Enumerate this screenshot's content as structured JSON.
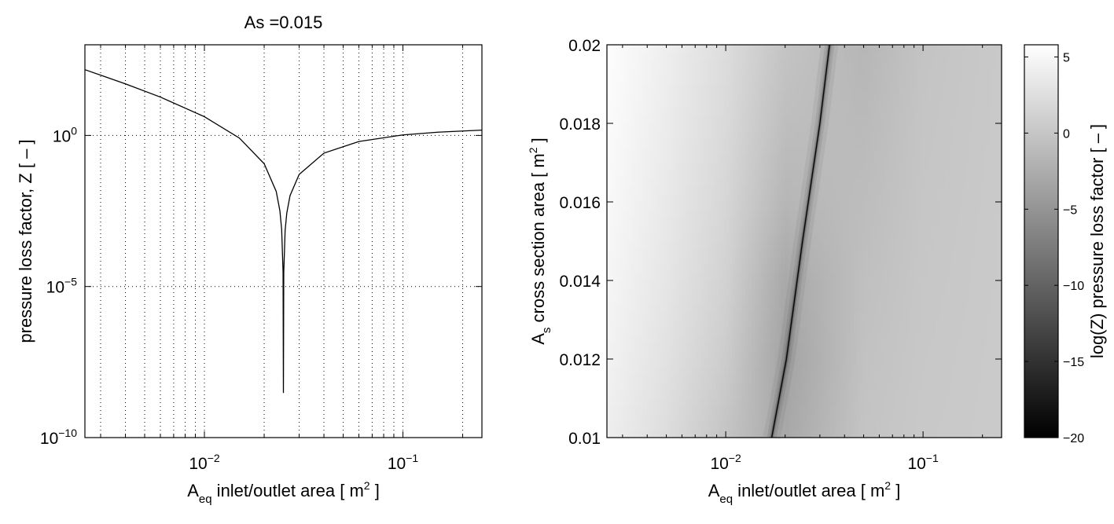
{
  "chart_data": [
    {
      "type": "line",
      "title": "As =0.015",
      "xlabel": {
        "main": "A",
        "sub": "eq",
        "rest": " inlet/outlet area [ m",
        "sup": "2",
        "end": " ]"
      },
      "ylabel": "pressure loss factor, Z [ – ]",
      "xscale": "log",
      "yscale": "log",
      "xlim": [
        0.0025,
        0.25
      ],
      "ylim": [
        1e-10,
        1000
      ],
      "grid": true,
      "xticks": [
        {
          "value": 0.01,
          "base": "10",
          "exp": "−2"
        },
        {
          "value": 0.1,
          "base": "10",
          "exp": "−1"
        }
      ],
      "yticks": [
        {
          "value": 1e-10,
          "base": "10",
          "exp": "−10"
        },
        {
          "value": 1e-05,
          "base": "10",
          "exp": "−5"
        },
        {
          "value": 1,
          "base": "10",
          "exp": "0"
        }
      ],
      "line_color": "#000000",
      "series": [
        {
          "x": [
            0.0025,
            0.004,
            0.006,
            0.01,
            0.015,
            0.02,
            0.023,
            0.024,
            0.0245,
            0.0249,
            0.025,
            0.0251,
            0.0255,
            0.026,
            0.027,
            0.03,
            0.04,
            0.06,
            0.1,
            0.15,
            0.25
          ],
          "y": [
            150,
            51,
            18.6,
            4.16,
            0.82,
            0.116,
            0.014,
            0.0032,
            0.00077,
            3e-05,
            3e-09,
            2.9e-05,
            0.00071,
            0.0027,
            0.0102,
            0.051,
            0.26,
            0.63,
            1.04,
            1.28,
            1.5
          ]
        }
      ]
    },
    {
      "type": "heatmap",
      "xlabel": {
        "main": "A",
        "sub": "eq",
        "rest": " inlet/outlet area [ m",
        "sup": "2",
        "end": " ]"
      },
      "ylabel": {
        "main": "A",
        "sub": "s",
        "rest": " cross section area [ m",
        "sup": "2",
        "end": " ]"
      },
      "xscale": "log",
      "xlim": [
        0.0025,
        0.25
      ],
      "ylim": [
        0.01,
        0.02
      ],
      "xticks": [
        {
          "value": 0.01,
          "base": "10",
          "exp": "−2"
        },
        {
          "value": 0.1,
          "base": "10",
          "exp": "−1"
        }
      ],
      "yticks": [
        "0.01",
        "0.012",
        "0.014",
        "0.016",
        "0.018",
        "0.02"
      ],
      "colormap": "gray",
      "colorbar": {
        "label": "log(Z) pressure loss factor [ – ]",
        "clim": [
          -20,
          5.8
        ],
        "ticks": [
          "5",
          "0",
          "−5",
          "−10",
          "−15",
          "−20"
        ],
        "tick_values": [
          5,
          0,
          -5,
          -10,
          -15,
          -20
        ]
      },
      "x": [
        0.0025,
        0.005,
        0.01,
        0.02,
        0.05,
        0.1,
        0.25
      ],
      "y": [
        0.01,
        0.012,
        0.014,
        0.016,
        0.018,
        0.02
      ],
      "z": [
        [
          4.09,
          2.32,
          -0.19,
          -2.99,
          -0.2,
          0.25,
          0.48
        ],
        [
          4.51,
          2.81,
          0.62,
          -20,
          -0.41,
          0.17,
          0.45
        ],
        [
          4.86,
          3.22,
          1.2,
          -2.93,
          -0.65,
          0.08,
          0.42
        ],
        [
          5.16,
          3.55,
          1.64,
          -1.57,
          -0.91,
          -0.01,
          0.39
        ],
        [
          5.41,
          3.83,
          2.0,
          -0.77,
          -1.22,
          -0.1,
          0.36
        ],
        [
          5.64,
          4.09,
          2.32,
          -0.19,
          -1.59,
          -0.2,
          0.33
        ]
      ],
      "min_locus": {
        "As": [
          0.01,
          0.012,
          0.015,
          0.018,
          0.02
        ],
        "Aeq": [
          0.0171,
          0.0203,
          0.0245,
          0.03,
          0.0336
        ]
      }
    }
  ]
}
